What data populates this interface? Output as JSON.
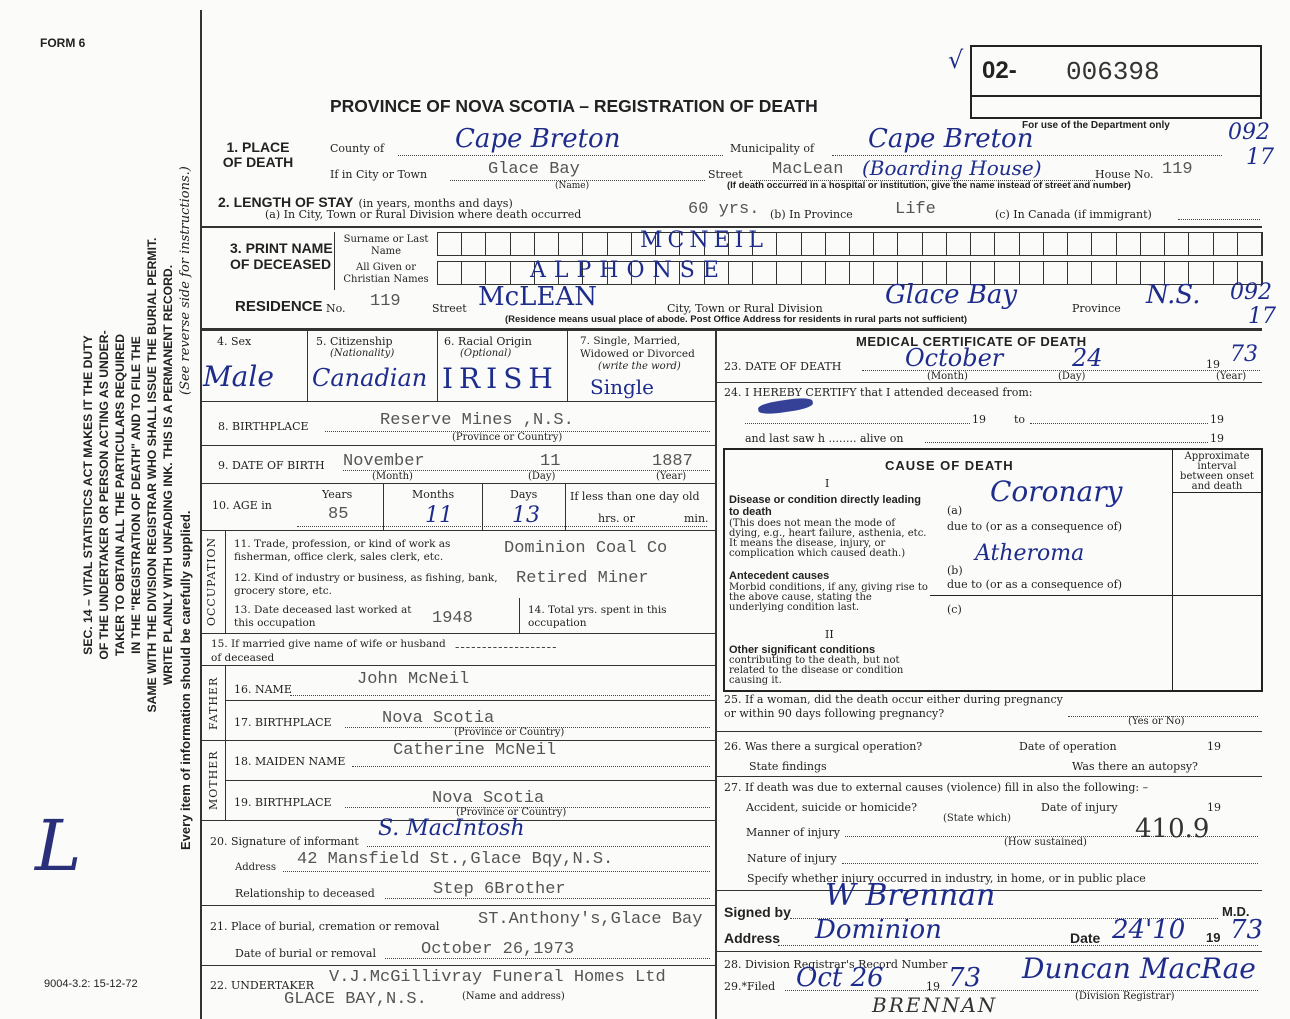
{
  "form_number": "FORM 6",
  "title": "PROVINCE OF NOVA SCOTIA – REGISTRATION OF DEATH",
  "registration": {
    "check": "√",
    "prefix": "02-",
    "number": "006398"
  },
  "department_note": "For use of the Department only",
  "department_codes": {
    "place_top": "092",
    "place_bottom": "17",
    "residence_top": "092",
    "residence_bottom": "17"
  },
  "side_notice": {
    "lines": [
      "SEC. 14 – VITAL STATISTICS ACT MAKES IT THE DUTY",
      "OF THE UNDERTAKER OR PERSON ACTING AS UNDER-",
      "TAKER TO OBTAIN ALL THE PARTICULARS REQUIRED",
      "IN THE \"REGISTRATION OF DEATH\" AND TO FILE THE",
      "SAME WITH THE DIVISION REGISTRAR WHO SHALL ISSUE THE BURIAL PERMIT.",
      "WRITE PLAINLY WITH UNFADING INK. THIS IS A PERMANENT RECORD."
    ],
    "supply_note": "Every item of information should be carefully supplied.",
    "instructions_note": "(See reverse side for instructions.)",
    "margin_mark": "L"
  },
  "form_code": "9004-3.2: 15-12-72",
  "place_of_death": {
    "label": "1. PLACE OF DEATH",
    "county_label": "County of",
    "county": "Cape Breton",
    "municipality_label": "Municipality of",
    "municipality": "Cape Breton",
    "city_label": "If in City or Town",
    "city": "Glace Bay",
    "name_caption": "(Name)",
    "street_label": "Street",
    "street": "MacLean",
    "street_note": "(Boarding House)",
    "house_label": "House No.",
    "house": "119",
    "hospital_note": "(If death occurred in a hospital or institution, give the name instead of street and number)"
  },
  "length_of_stay": {
    "label": "2. LENGTH OF STAY",
    "label_note": "(in years, months and days)",
    "city_label": "(a) In City, Town or Rural Division where death occurred",
    "city": "60 yrs.",
    "province_label": "(b) In Province",
    "province": "Life",
    "canada_label": "(c) In Canada (if immigrant)"
  },
  "name": {
    "label": "3. PRINT NAME OF DECEASED",
    "surname_label": "Surname or Last Name",
    "surname": "MCNEIL",
    "given_label": "All Given or Christian Names",
    "given": "ALPHONSE"
  },
  "residence": {
    "label": "RESIDENCE",
    "no_label": "No.",
    "no": "119",
    "street_label": "Street",
    "street": "McLEAN",
    "city_label": "City, Town or Rural Division",
    "city": "Glace Bay",
    "province_label": "Province",
    "province": "N.S.",
    "note": "(Residence means usual place of abode. Post Office Address for residents in rural parts not sufficient)"
  },
  "sex": {
    "label": "4. Sex",
    "value": "Male"
  },
  "citizenship": {
    "label": "5. Citizenship",
    "sub": "(Nationality)",
    "value": "Canadian"
  },
  "racial_origin": {
    "label": "6. Racial Origin",
    "sub": "(Optional)",
    "value": "IRISH"
  },
  "marital": {
    "label": "7. Single, Married, Widowed or Divorced",
    "sub": "(write the word)",
    "value": "Single"
  },
  "birthplace": {
    "label": "8. BIRTHPLACE",
    "value": "Reserve Mines ,N.S.",
    "caption": "(Province or Country)"
  },
  "date_of_birth": {
    "label": "9. DATE OF BIRTH",
    "month": "November",
    "day": "11",
    "year": "1887",
    "month_caption": "(Month)",
    "day_caption": "(Day)",
    "year_caption": "(Year)"
  },
  "age": {
    "label": "10. AGE in",
    "years_label": "Years",
    "years": "85",
    "months_label": "Months",
    "months": "11",
    "days_label": "Days",
    "days": "13",
    "less_label": "If less than one day old",
    "hrs_label": "hrs. or",
    "min_label": "min."
  },
  "occupation": {
    "side_label": "OCCUPATION",
    "trade_label": "11. Trade, profession, or kind of work as fisherman, office clerk, sales clerk, etc.",
    "trade": "Dominion Coal Co",
    "industry_label": "12. Kind of industry or business, as fishing, bank, grocery store, etc.",
    "industry": "Retired Miner",
    "last_worked_label": "13. Date deceased last worked at this occupation",
    "last_worked": "1948",
    "total_years_label": "14. Total yrs. spent in this occupation"
  },
  "spouse": {
    "label": "15. If married give name of wife or husband of deceased",
    "value": "-------------------"
  },
  "father": {
    "side_label": "FATHER",
    "name_label": "16. NAME",
    "name": "John McNeil",
    "birthplace_label": "17. BIRTHPLACE",
    "birthplace": "Nova Scotia",
    "caption": "(Province or Country)"
  },
  "mother": {
    "side_label": "MOTHER",
    "name_label": "18. MAIDEN NAME",
    "name": "Catherine McNeil",
    "birthplace_label": "19. BIRTHPLACE",
    "birthplace": "Nova Scotia",
    "caption": "(Province or Country)"
  },
  "informant": {
    "signature_label": "20. Signature of informant",
    "signature": "S. MacIntosh",
    "address_label": "Address",
    "address": "42 Mansfield St.,Glace Bqy,N.S.",
    "relationship_label": "Relationship to deceased",
    "relationship": "Step 6Brother"
  },
  "burial": {
    "place_label": "21. Place of burial, cremation or removal",
    "place": "ST.Anthony's,Glace Bay",
    "date_label": "Date of burial or removal",
    "date": "October 26,1973"
  },
  "undertaker": {
    "label": "22. UNDERTAKER",
    "name": "V.J.McGillivray Funeral Homes Ltd",
    "address": "GLACE BAY,N.S.",
    "caption": "(Name and address)"
  },
  "medical": {
    "heading": "MEDICAL CERTIFICATE OF DEATH",
    "date_of_death": {
      "label": "23. DATE OF DEATH",
      "month": "October",
      "day": "24",
      "year_prefix": "19",
      "year": "73",
      "month_caption": "(Month)",
      "day_caption": "(Day)",
      "year_caption": "(Year)"
    },
    "attendance": {
      "label": "24. I HEREBY CERTIFY that I attended deceased from:",
      "year1": "19",
      "to": "to",
      "year2": "19",
      "last_saw": "and last saw h ........ alive on",
      "year3": "19"
    },
    "cause": {
      "heading": "CAUSE OF DEATH",
      "interval_label": "Approximate interval between onset and death",
      "part1": "I",
      "direct_label": "Disease or condition directly leading to death",
      "direct_note": "(This does not mean the mode of dying, e.g., heart failure, asthenia, etc. It means the disease, injury, or complication which caused death.)",
      "a_label": "(a)",
      "a": "Coronary",
      "due_to": "due to (or as a consequence of)",
      "antecedent_label": "Antecedent causes",
      "antecedent_note": "Morbid conditions, if any, giving rise to the above cause, stating the underlying condition last.",
      "b_label": "(b)",
      "b": "Atheroma",
      "c_label": "(c)",
      "part2": "II",
      "other_label": "Other significant conditions",
      "other_note": "contributing to the death, but not related to the disease or condition causing it."
    },
    "pregnancy": {
      "label": "25. If a woman, did the death occur either during pregnancy or within 90 days following pregnancy?",
      "caption": "(Yes or No)"
    },
    "operation": {
      "label": "26. Was there a surgical operation?",
      "date_label": "Date of operation",
      "year": "19",
      "findings_label": "State findings",
      "autopsy_label": "Was there an autopsy?"
    },
    "external": {
      "label": "27. If death was due to external causes (violence) fill in also the following: –",
      "accident_label": "Accident, suicide or homicide?",
      "state_which": "(State which)",
      "injury_date_label": "Date of injury",
      "year": "19",
      "manner_label": "Manner of injury",
      "how": "(How sustained)",
      "code": "410.9",
      "nature_label": "Nature of injury",
      "specify_label": "Specify whether injury occurred in industry, in home, or in public place"
    },
    "signed": {
      "label": "Signed by",
      "signature": "W Brennan",
      "md": "M.D.",
      "address_label": "Address",
      "address": "Dominion",
      "date_label": "Date",
      "date": "24'10",
      "year_prefix": "19",
      "year": "73"
    },
    "registrar": {
      "record_label": "28. Division Registrar's Record Number",
      "filed_label": "29.*Filed",
      "filed": "Oct 26",
      "year_prefix": "19",
      "year": "73",
      "registrar_signature": "Duncan MacRae",
      "registrar_caption": "(Division Registrar)",
      "printed_name": "BRENNAN"
    }
  }
}
